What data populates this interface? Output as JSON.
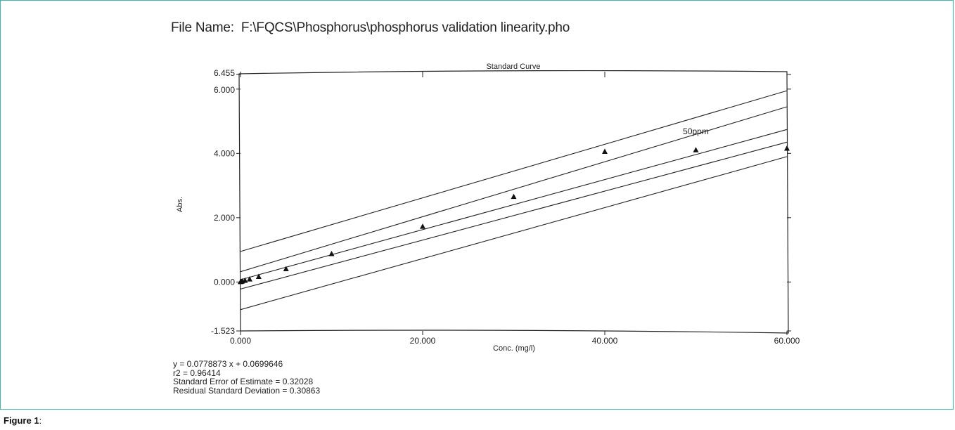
{
  "header": {
    "file_label": "File Name:",
    "file_path": "F:\\FQCS\\Phosphorus\\phosphorus validation linearity.pho"
  },
  "chart_data": {
    "type": "scatter",
    "title": "Standard Curve",
    "xlabel": "Conc. (mg/l)",
    "ylabel": "Abs.",
    "xlim": [
      0,
      60
    ],
    "ylim": [
      -1.523,
      6.455
    ],
    "x_ticks": [
      "0.000",
      "20.000",
      "40.000",
      "60.000"
    ],
    "y_ticks": [
      "-1.523",
      "0.000",
      "2.000",
      "4.000",
      "6.000",
      "6.455"
    ],
    "x_tick_values": [
      0,
      20,
      40,
      60
    ],
    "y_tick_values": [
      -1.523,
      0,
      2,
      4,
      6,
      6.455
    ],
    "grid": false,
    "points": [
      {
        "x": 0,
        "y": 0.0
      },
      {
        "x": 0.1,
        "y": 0.01
      },
      {
        "x": 0.2,
        "y": 0.02
      },
      {
        "x": 0.5,
        "y": 0.04
      },
      {
        "x": 1,
        "y": 0.08
      },
      {
        "x": 2,
        "y": 0.16
      },
      {
        "x": 5,
        "y": 0.4
      },
      {
        "x": 10,
        "y": 0.87
      },
      {
        "x": 20,
        "y": 1.72
      },
      {
        "x": 30,
        "y": 2.65
      },
      {
        "x": 40,
        "y": 4.05
      },
      {
        "x": 50,
        "y": 4.1
      },
      {
        "x": 60,
        "y": 4.15
      }
    ],
    "annotations": [
      {
        "text": "50ppm",
        "x": 50,
        "y": 4.6
      }
    ],
    "fit": {
      "slope": 0.0778873,
      "intercept": 0.0699646
    },
    "bands": [
      {
        "name": "outer-upper",
        "y0": 0.95,
        "y60": 5.95
      },
      {
        "name": "inner-upper",
        "y0": 0.32,
        "y60": 5.45
      },
      {
        "name": "inner-lower",
        "y0": -0.22,
        "y60": 4.35
      },
      {
        "name": "outer-lower",
        "y0": -0.86,
        "y60": 3.9
      }
    ]
  },
  "stats": {
    "equation": "y = 0.0778873 x + 0.0699646",
    "r2": "r2 = 0.96414",
    "std_error": "Standard Error of Estimate = 0.32028",
    "residual_sd": "Residual Standard Deviation = 0.30863"
  },
  "caption": {
    "label": "Figure 1",
    "suffix": ":"
  }
}
